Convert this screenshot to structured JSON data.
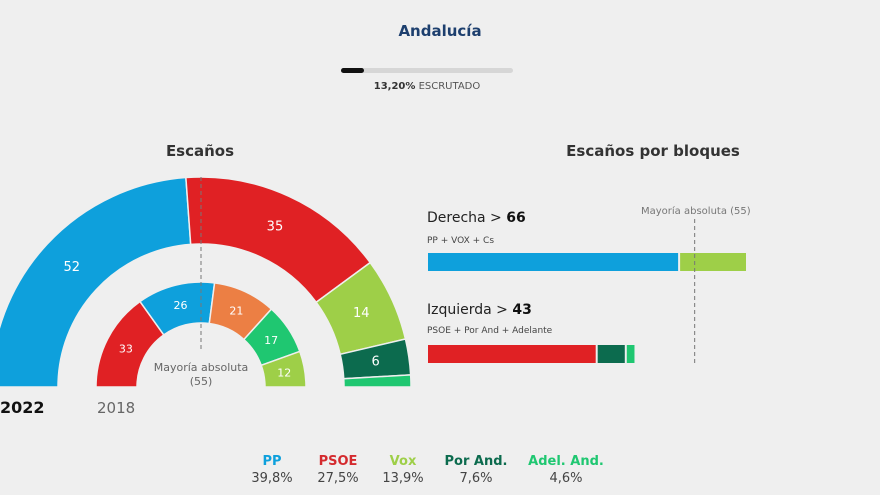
{
  "title": "Andalucía",
  "progress": {
    "percent": 13.2,
    "value_label": "13,20%",
    "text": "ESCRUTADO"
  },
  "colors": {
    "PP": "#0ea0dc",
    "PSOE": "#e02124",
    "Vox": "#9ecf48",
    "PorAnd": "#0c6b4e",
    "Adelante": "#1fc771",
    "Cs": "#ec7f44"
  },
  "chart_data": [
    {
      "type": "pie",
      "variant": "parliament-semicircle",
      "title": "Escaños",
      "majority_label": "Mayoría absoluta (55)",
      "majority": 55,
      "rings": [
        {
          "label": "2022",
          "slices": [
            {
              "name": "PP",
              "value": 52,
              "color": "#0ea0dc"
            },
            {
              "name": "PSOE",
              "value": 35,
              "color": "#e02124"
            },
            {
              "name": "Vox",
              "value": 14,
              "color": "#9ecf48"
            },
            {
              "name": "Por And.",
              "value": 6,
              "color": "#0c6b4e"
            },
            {
              "name": "Adel. And.",
              "value": 2,
              "color": "#1fc771"
            }
          ]
        },
        {
          "label": "2018",
          "slices": [
            {
              "name": "PSOE",
              "value": 33,
              "color": "#e02124"
            },
            {
              "name": "PP",
              "value": 26,
              "color": "#0ea0dc"
            },
            {
              "name": "Cs",
              "value": 21,
              "color": "#ec7f44"
            },
            {
              "name": "Adelante",
              "value": 17,
              "color": "#1fc771"
            },
            {
              "name": "Vox",
              "value": 12,
              "color": "#9ecf48"
            }
          ]
        }
      ]
    },
    {
      "type": "bar",
      "variant": "stacked-horizontal",
      "title": "Escaños por bloques",
      "majority_label": "Mayoría absoluta (55)",
      "majority": 55,
      "blocks": [
        {
          "name": "Derecha",
          "total": 66,
          "sub": "PP + VOX + Cs",
          "segments": [
            {
              "name": "PP",
              "value": 52,
              "color": "#0ea0dc"
            },
            {
              "name": "Vox",
              "value": 14,
              "color": "#9ecf48"
            }
          ]
        },
        {
          "name": "Izquierda",
          "total": 43,
          "sub": "PSOE + Por And + Adelante",
          "segments": [
            {
              "name": "PSOE",
              "value": 35,
              "color": "#e02124"
            },
            {
              "name": "Por And.",
              "value": 6,
              "color": "#0c6b4e"
            },
            {
              "name": "Adel. And.",
              "value": 2,
              "color": "#1fc771"
            }
          ]
        }
      ]
    }
  ],
  "legend": [
    {
      "name": "PP",
      "pct": "39,8%",
      "color": "#0ea0dc"
    },
    {
      "name": "PSOE",
      "pct": "27,5%",
      "color": "#d42a2e"
    },
    {
      "name": "Vox",
      "pct": "13,9%",
      "color": "#9ecf48"
    },
    {
      "name": "Por And.",
      "pct": "7,6%",
      "color": "#0c6b4e"
    },
    {
      "name": "Adel. And.",
      "pct": "4,6%",
      "color": "#1fc771"
    }
  ]
}
